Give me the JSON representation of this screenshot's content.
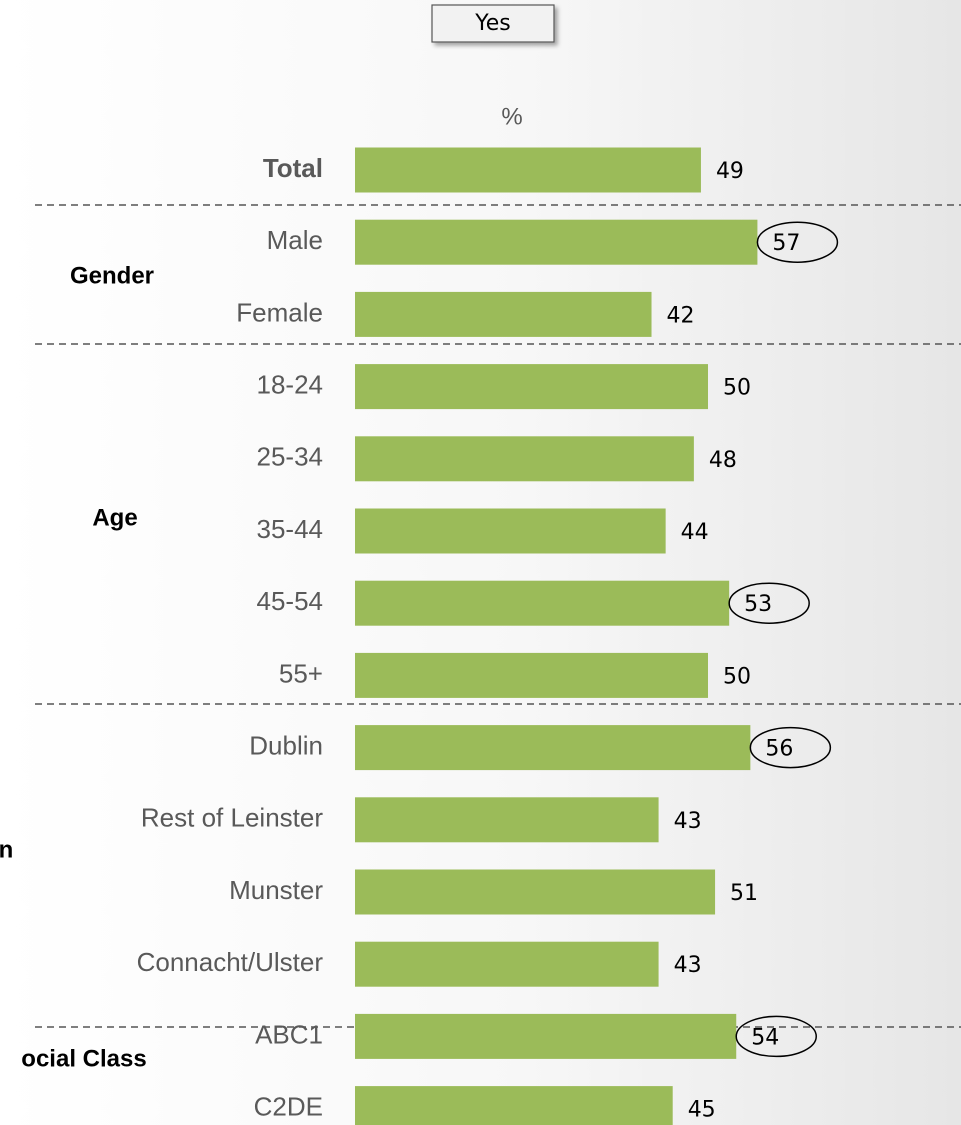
{
  "chart_data": {
    "type": "bar",
    "orientation": "horizontal",
    "header": "Yes",
    "unit_label": "%",
    "categories": [
      "Total",
      "Male",
      "Female",
      "18-24",
      "25-34",
      "35-44",
      "45-54",
      "55+",
      "Dublin",
      "Rest of Leinster",
      "Munster",
      "Connacht/Ulster",
      "ABC1",
      "C2DE"
    ],
    "values": [
      49,
      57,
      42,
      50,
      48,
      44,
      53,
      50,
      56,
      43,
      51,
      43,
      54,
      45
    ],
    "circled": [
      false,
      true,
      false,
      false,
      false,
      false,
      true,
      false,
      true,
      false,
      false,
      false,
      true,
      false
    ],
    "groups": [
      "Gender",
      "Age",
      "n",
      "ocial Class"
    ],
    "color": "#9bbb59"
  }
}
